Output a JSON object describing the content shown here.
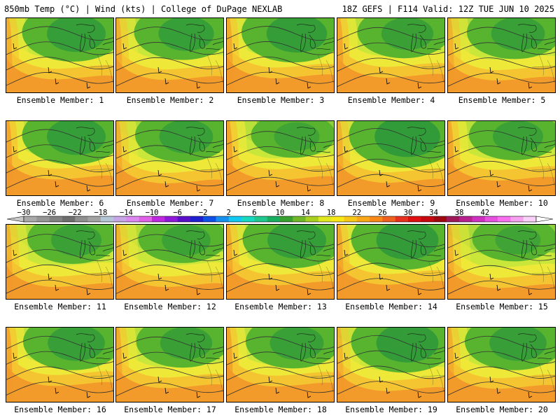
{
  "header": {
    "left": "850mb Temp (°C) | Wind (kts) | College of DuPage NEXLAB",
    "right": "18Z GEFS | F114 Valid: 12Z TUE JUN 10 2025"
  },
  "panels": [
    {
      "label": "Ensemble Member: 1",
      "cold": 0.75,
      "warm": 0.55
    },
    {
      "label": "Ensemble Member: 2",
      "cold": 0.65,
      "warm": 0.5
    },
    {
      "label": "Ensemble Member: 3",
      "cold": 0.8,
      "warm": 0.65
    },
    {
      "label": "Ensemble Member: 4",
      "cold": 0.55,
      "warm": 0.7
    },
    {
      "label": "Ensemble Member: 5",
      "cold": 0.6,
      "warm": 0.45
    },
    {
      "label": "Ensemble Member: 6",
      "cold": 0.75,
      "warm": 0.8
    },
    {
      "label": "Ensemble Member: 7",
      "cold": 0.6,
      "warm": 0.45
    },
    {
      "label": "Ensemble Member: 8",
      "cold": 0.35,
      "warm": 0.75
    },
    {
      "label": "Ensemble Member: 9",
      "cold": 0.95,
      "warm": 0.5
    },
    {
      "label": "Ensemble Member: 10",
      "cold": 0.5,
      "warm": 0.7
    },
    {
      "label": "Ensemble Member: 11",
      "cold": 0.5,
      "warm": 0.45
    },
    {
      "label": "Ensemble Member: 12",
      "cold": 0.45,
      "warm": 0.45
    },
    {
      "label": "Ensemble Member: 13",
      "cold": 0.75,
      "warm": 0.6
    },
    {
      "label": "Ensemble Member: 14",
      "cold": 0.85,
      "warm": 0.65
    },
    {
      "label": "Ensemble Member: 15",
      "cold": 0.35,
      "warm": 0.35
    },
    {
      "label": "Ensemble Member: 16",
      "cold": 0.7,
      "warm": 0.8
    },
    {
      "label": "Ensemble Member: 17",
      "cold": 0.55,
      "warm": 0.6
    },
    {
      "label": "Ensemble Member: 18",
      "cold": 0.6,
      "warm": 0.75
    },
    {
      "label": "Ensemble Member: 19",
      "cold": 0.85,
      "warm": 0.35
    },
    {
      "label": "Ensemble Member: 20",
      "cold": 0.7,
      "warm": 0.55
    }
  ],
  "colorbar": {
    "labels": [
      "−30",
      "−26",
      "−22",
      "−18",
      "−14",
      "−10",
      "−6",
      "−2",
      "2",
      "6",
      "10",
      "14",
      "18",
      "22",
      "26",
      "30",
      "34",
      "38",
      "42"
    ],
    "colors": [
      "#a9a9a9",
      "#969696",
      "#828282",
      "#6e6e6e",
      "#8f8f8f",
      "#a3a3a3",
      "#b4c6d6",
      "#c7a6e6",
      "#dd88f0",
      "#e060e8",
      "#c028e0",
      "#9018d8",
      "#5a10c8",
      "#2020d0",
      "#1050e8",
      "#1890f0",
      "#10c8f0",
      "#18d8c0",
      "#20c890",
      "#18b060",
      "#38a030",
      "#70b828",
      "#a8d020",
      "#e0e820",
      "#f8e818",
      "#f8c818",
      "#f8a818",
      "#f88818",
      "#f06020",
      "#e83020",
      "#e01010",
      "#c80810",
      "#a00810",
      "#a01858",
      "#b82090",
      "#d030c0",
      "#e850e0",
      "#f870f0",
      "#f8a0f0",
      "#f8d0f8"
    ],
    "end_left": "#c8c8c8",
    "end_right": "#ffffff"
  },
  "map_colors": {
    "green_dark": "#2f9a3a",
    "green": "#58b32f",
    "green_light": "#8ccf3a",
    "yellow_green": "#c9e63a",
    "yellow": "#eee838",
    "orange_light": "#f5c531",
    "orange": "#f29a2a",
    "red_orange": "#ec6b27"
  }
}
